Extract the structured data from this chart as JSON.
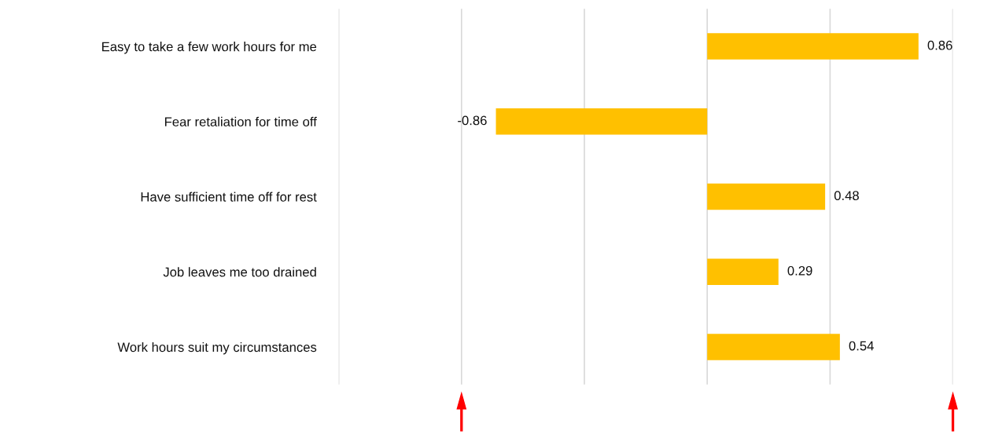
{
  "chart_data": {
    "type": "bar",
    "orientation": "horizontal",
    "categories": [
      "Easy to take a few work hours for me",
      "Fear retaliation for time off",
      "Have sufficient time off for rest",
      "Job leaves me too drained",
      "Work hours suit my circumstances"
    ],
    "values": [
      0.86,
      -0.86,
      0.48,
      0.29,
      0.54
    ],
    "color": "#ffc000",
    "data_labels": true,
    "xlim": [
      -1.5,
      1.0
    ],
    "xticks": [
      {
        "value": -1.5,
        "label": null
      },
      {
        "value": -1,
        "label": null
      },
      {
        "value": -0.5,
        "label": null
      },
      {
        "value": 0,
        "label": null
      },
      {
        "value": 0.5,
        "label": null
      },
      {
        "value": 1,
        "label": null
      }
    ],
    "tick_labels": "y",
    "grid": "x",
    "legend": false
  }
}
